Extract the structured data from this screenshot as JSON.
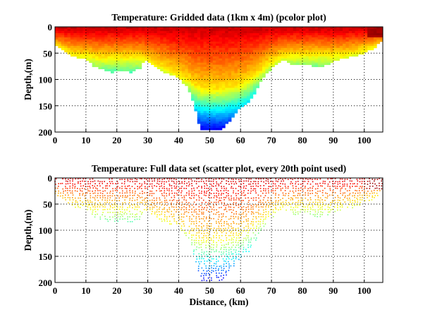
{
  "chart_data": [
    {
      "type": "heatmap",
      "title": "Temperature: Gridded data (1km x 4m) (pcolor plot)",
      "xlabel": "",
      "ylabel": "Depth,(m)",
      "xlim": [
        0,
        106
      ],
      "ylim": [
        200,
        0
      ],
      "xticks": [
        "0",
        "10",
        "20",
        "30",
        "40",
        "50",
        "60",
        "70",
        "80",
        "90",
        "100"
      ],
      "yticks": [
        "0",
        "50",
        "100",
        "150",
        "200"
      ],
      "grid": true,
      "colormap": "jet",
      "cell_km": 1,
      "cell_m": 4
    },
    {
      "type": "scatter",
      "title": "Temperature: Full data set (scatter plot, every 20th point used)",
      "xlabel": "Distance, (km)",
      "ylabel": "Depth,(m)",
      "xlim": [
        0,
        106
      ],
      "ylim": [
        200,
        0
      ],
      "xticks": [
        "0",
        "10",
        "20",
        "30",
        "40",
        "50",
        "60",
        "70",
        "80",
        "90",
        "100"
      ],
      "yticks": [
        "0",
        "50",
        "100",
        "150",
        "200"
      ],
      "grid": true,
      "colormap": "jet"
    }
  ],
  "section": {
    "distance_km": [
      0,
      2,
      4,
      6,
      10,
      13,
      18,
      22,
      25,
      28,
      29,
      31,
      35,
      40,
      43,
      44,
      45,
      46,
      47,
      54,
      56,
      58,
      60,
      63,
      65,
      67,
      69,
      72,
      75,
      76,
      80,
      85,
      88,
      92,
      96,
      100,
      103,
      105,
      106
    ],
    "bottom_depth_m": [
      30,
      40,
      50,
      55,
      60,
      75,
      85,
      80,
      85,
      75,
      60,
      70,
      85,
      95,
      115,
      130,
      150,
      170,
      195,
      195,
      180,
      165,
      150,
      140,
      120,
      95,
      85,
      65,
      60,
      70,
      68,
      75,
      70,
      60,
      55,
      48,
      40,
      25,
      25
    ],
    "thermocline_depth_m": [
      35,
      40,
      45,
      50,
      50,
      55,
      55,
      55,
      55,
      55,
      60,
      65,
      75,
      90,
      100,
      105,
      110,
      112,
      115,
      115,
      112,
      110,
      105,
      95,
      85,
      75,
      65,
      55,
      50,
      50,
      50,
      50,
      50,
      50,
      45,
      40,
      35,
      30,
      30
    ]
  }
}
